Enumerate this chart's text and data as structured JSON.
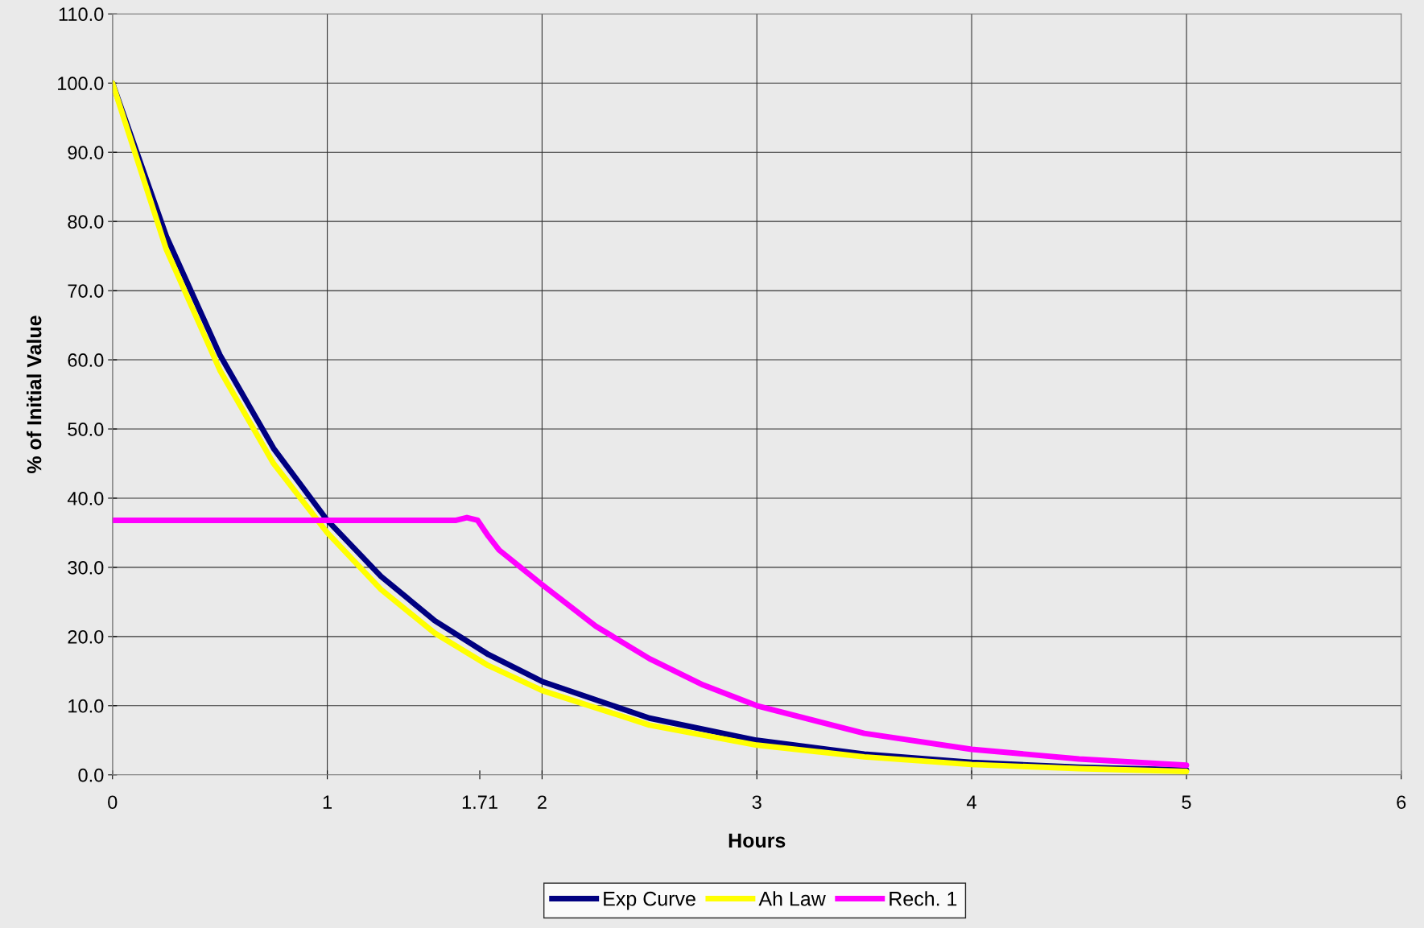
{
  "chart_data": {
    "type": "line",
    "xlabel": "Hours",
    "ylabel": "% of Initial Value",
    "xlim": [
      0,
      6
    ],
    "xticks": [
      0,
      1,
      {
        "value": 1.71,
        "label": "1.71"
      },
      2,
      3,
      4,
      5,
      6
    ],
    "ylim": [
      0,
      110
    ],
    "yticks": [
      {
        "value": 0,
        "label": "0.0"
      },
      {
        "value": 10,
        "label": "10.0"
      },
      {
        "value": 20,
        "label": "20.0"
      },
      {
        "value": 30,
        "label": "30.0"
      },
      {
        "value": 40,
        "label": "40.0"
      },
      {
        "value": 50,
        "label": "50.0"
      },
      {
        "value": 60,
        "label": "60.0"
      },
      {
        "value": 70,
        "label": "70.0"
      },
      {
        "value": 80,
        "label": "80.0"
      },
      {
        "value": 90,
        "label": "90.0"
      },
      {
        "value": 100,
        "label": "100.0"
      },
      {
        "value": 110,
        "label": "110.0"
      }
    ],
    "grid": true,
    "legend": "bottom",
    "marker": "none",
    "line_style": "solid",
    "series": [
      {
        "name": "Exp Curve",
        "color": "#000080",
        "x": [
          0,
          0.25,
          0.5,
          0.75,
          1,
          1.25,
          1.5,
          1.75,
          2,
          2.5,
          3,
          3.5,
          4,
          4.5,
          5
        ],
        "values": [
          100,
          77.9,
          60.7,
          47.2,
          36.8,
          28.7,
          22.3,
          17.4,
          13.5,
          8.2,
          5.0,
          3.0,
          1.8,
          1.1,
          0.7
        ]
      },
      {
        "name": "Ah Law",
        "color": "#ffff00",
        "x": [
          0,
          0.25,
          0.5,
          0.75,
          1,
          1.25,
          1.5,
          1.75,
          2,
          2.5,
          3,
          3.5,
          4,
          4.5,
          5
        ],
        "values": [
          100,
          76,
          58.5,
          45,
          35,
          26.8,
          20.5,
          15.8,
          12.2,
          7.2,
          4.3,
          2.6,
          1.5,
          0.9,
          0.5
        ]
      },
      {
        "name": "Rech. 1",
        "color": "#ff00ff",
        "x": [
          0,
          1.6,
          1.65,
          1.7,
          1.75,
          1.8,
          2,
          2.25,
          2.5,
          2.75,
          3,
          3.5,
          4,
          4.5,
          5
        ],
        "values": [
          36.8,
          36.8,
          37.2,
          36.8,
          34.5,
          32.5,
          27.5,
          21.5,
          16.8,
          13,
          10,
          6,
          3.7,
          2.3,
          1.4
        ]
      }
    ]
  }
}
